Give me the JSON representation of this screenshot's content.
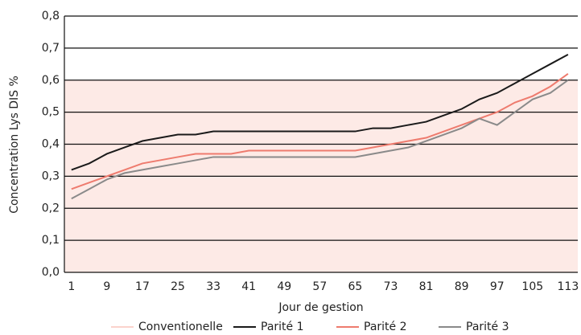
{
  "chart_data": {
    "type": "line",
    "y_label": "Concentration Lys DIS %",
    "x_label": "Jour de gestion",
    "x": [
      1,
      5,
      9,
      13,
      17,
      21,
      25,
      29,
      33,
      37,
      41,
      45,
      49,
      53,
      57,
      61,
      65,
      69,
      73,
      77,
      81,
      85,
      89,
      93,
      97,
      101,
      105,
      109,
      113
    ],
    "xlim": [
      -0.6,
      115.2
    ],
    "xticks": [
      1,
      9,
      17,
      25,
      33,
      41,
      49,
      57,
      65,
      73,
      81,
      89,
      97,
      105,
      113
    ],
    "ylim": [
      0,
      0.8
    ],
    "yticks": [
      {
        "value": 0,
        "label": "0,0"
      },
      {
        "value": 0.1,
        "label": "0,1"
      },
      {
        "value": 0.2,
        "label": "0,2"
      },
      {
        "value": 0.3,
        "label": "0,3"
      },
      {
        "value": 0.4,
        "label": "0,4"
      },
      {
        "value": 0.5,
        "label": "0,5"
      },
      {
        "value": 0.6,
        "label": "0,6"
      },
      {
        "value": 0.7,
        "label": "0,7"
      },
      {
        "value": 0.8,
        "label": "0,8"
      }
    ],
    "grid": true,
    "legend": "bottom",
    "series": [
      {
        "name": "Conventionelle",
        "color": "#fbd3cc",
        "fill": "#fdeae6",
        "area": true,
        "values": [
          0.6,
          0.6,
          0.6,
          0.6,
          0.6,
          0.6,
          0.6,
          0.6,
          0.6,
          0.6,
          0.6,
          0.6,
          0.6,
          0.6,
          0.6,
          0.6,
          0.6,
          0.6,
          0.6,
          0.6,
          0.6,
          0.6,
          0.6,
          0.6,
          0.6,
          0.6,
          0.6,
          0.6,
          0.6
        ]
      },
      {
        "name": "Parité 1",
        "color": "#1a1a1a",
        "values": [
          0.32,
          0.34,
          0.37,
          0.39,
          0.41,
          0.42,
          0.43,
          0.43,
          0.44,
          0.44,
          0.44,
          0.44,
          0.44,
          0.44,
          0.44,
          0.44,
          0.44,
          0.45,
          0.45,
          0.46,
          0.47,
          0.49,
          0.51,
          0.54,
          0.56,
          0.59,
          0.62,
          0.65,
          0.68
        ]
      },
      {
        "name": "Parité 2",
        "color": "#ee7b6e",
        "values": [
          0.26,
          0.28,
          0.3,
          0.32,
          0.34,
          0.35,
          0.36,
          0.37,
          0.37,
          0.37,
          0.38,
          0.38,
          0.38,
          0.38,
          0.38,
          0.38,
          0.38,
          0.39,
          0.4,
          0.41,
          0.42,
          0.44,
          0.46,
          0.48,
          0.5,
          0.53,
          0.55,
          0.58,
          0.62
        ]
      },
      {
        "name": "Parité 3",
        "color": "#8a8a8a",
        "values": [
          0.23,
          0.26,
          0.29,
          0.31,
          0.32,
          0.33,
          0.34,
          0.35,
          0.36,
          0.36,
          0.36,
          0.36,
          0.36,
          0.36,
          0.36,
          0.36,
          0.36,
          0.37,
          0.38,
          0.39,
          0.41,
          0.43,
          0.45,
          0.48,
          0.46,
          0.5,
          0.54,
          0.56,
          0.6
        ]
      }
    ]
  }
}
